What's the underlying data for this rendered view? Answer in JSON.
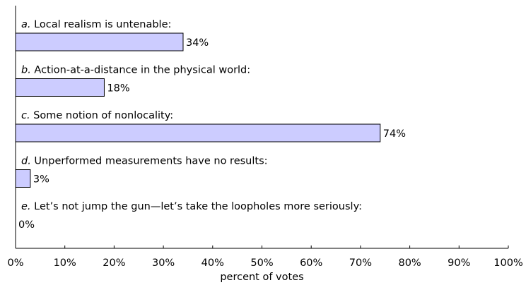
{
  "chart_data": {
    "type": "bar",
    "orientation": "horizontal",
    "bar_color": "#ccccff",
    "categories": [
      {
        "letter": "a.",
        "text": "Local realism is untenable:"
      },
      {
        "letter": "b.",
        "text": "Action-at-a-distance in the physical world:"
      },
      {
        "letter": "c.",
        "text": "Some notion of nonlocality:"
      },
      {
        "letter": "d.",
        "text": "Unperformed measurements have no results:"
      },
      {
        "letter": "e.",
        "text": "Let’s not jump the gun—let’s take the loopholes more seriously:"
      }
    ],
    "values": [
      34,
      18,
      74,
      3,
      0
    ],
    "value_labels": [
      "34%",
      "18%",
      "74%",
      "3%",
      "0%"
    ],
    "xlim": [
      0,
      100
    ],
    "xticks": [
      0,
      10,
      20,
      30,
      40,
      50,
      60,
      70,
      80,
      90,
      100
    ],
    "xtick_labels": [
      "0%",
      "10%",
      "20%",
      "30%",
      "40%",
      "50%",
      "60%",
      "70%",
      "80%",
      "90%",
      "100%"
    ],
    "xlabel": "percent of votes",
    "grid": false
  }
}
